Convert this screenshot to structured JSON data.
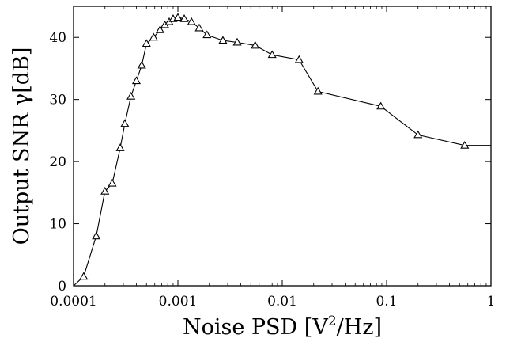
{
  "chart_data": {
    "type": "line",
    "title": "",
    "xlabel": {
      "prefix": "Noise PSD [V",
      "sup": "2",
      "suffix": "/Hz]"
    },
    "ylabel": "Output SNR γ[dB]",
    "xscale": "log",
    "xlim": [
      0.0001,
      1
    ],
    "ylim": [
      0,
      45
    ],
    "x_ticks": [
      0.0001,
      0.001,
      0.01,
      0.1,
      1
    ],
    "x_tick_labels": [
      "0.0001",
      "0.001",
      "0.01",
      "0.1",
      "1"
    ],
    "y_ticks": [
      0,
      10,
      20,
      30,
      40
    ],
    "y_tick_labels": [
      "0",
      "10",
      "20",
      "30",
      "40"
    ],
    "grid": false,
    "marker": "triangle",
    "series": [
      {
        "name": "",
        "x": [
          0.0001,
          0.000125,
          0.000165,
          0.0002,
          0.000235,
          0.00028,
          0.00031,
          0.000355,
          0.0004,
          0.00045,
          0.0005,
          0.000585,
          0.000675,
          0.00075,
          0.000825,
          0.0009,
          0.001,
          0.00115,
          0.00135,
          0.0016,
          0.0019,
          0.0027,
          0.0037,
          0.0055,
          0.008,
          0.0145,
          0.022,
          0.088,
          0.2,
          0.56,
          1
        ],
        "y": [
          0,
          1.5,
          8.0,
          15.2,
          16.5,
          22.2,
          26.1,
          30.5,
          33.0,
          35.5,
          39.0,
          40.0,
          41.2,
          42.0,
          42.5,
          43.0,
          43.2,
          43.0,
          42.5,
          41.5,
          40.4,
          39.5,
          39.2,
          38.7,
          37.2,
          36.4,
          31.3,
          28.9,
          24.3,
          22.6,
          22.6
        ],
        "markers_shown": [
          false,
          true,
          true,
          true,
          true,
          true,
          true,
          true,
          true,
          true,
          true,
          true,
          true,
          true,
          true,
          true,
          true,
          true,
          true,
          true,
          true,
          true,
          true,
          true,
          true,
          true,
          true,
          true,
          true,
          true,
          false
        ]
      }
    ]
  }
}
